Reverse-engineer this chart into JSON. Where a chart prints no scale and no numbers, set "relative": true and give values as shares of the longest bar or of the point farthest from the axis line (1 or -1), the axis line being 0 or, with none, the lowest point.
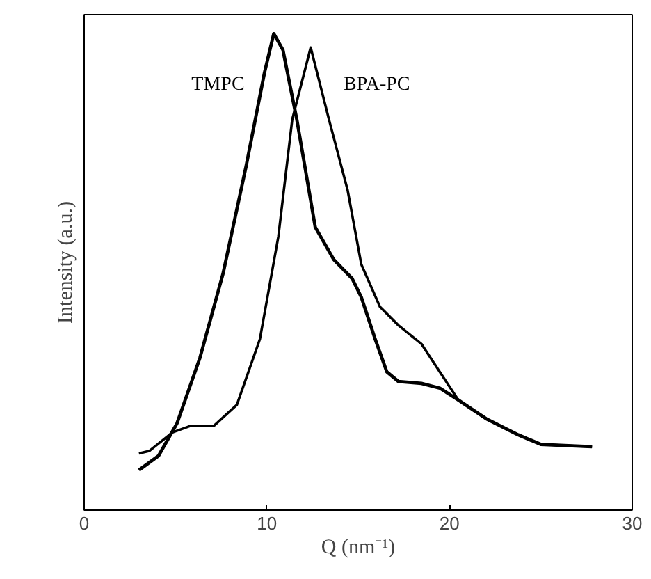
{
  "chart_data": {
    "type": "line",
    "relative": true,
    "xlabel": "Q (nm⁻¹)",
    "ylabel": "Intensity (a.u.)",
    "xlim": [
      0,
      30
    ],
    "xticks": [
      0,
      10,
      20,
      30
    ],
    "grid": false,
    "series": [
      {
        "name": "TMPC",
        "color": "#000000",
        "x": [
          3.0,
          4.07,
          5.08,
          6.34,
          7.6,
          8.86,
          9.87,
          10.38,
          10.88,
          11.64,
          12.65,
          13.66,
          14.67,
          15.17,
          15.93,
          16.57,
          17.2,
          18.46,
          19.47,
          20.48,
          22.0,
          23.76,
          25.0,
          27.8
        ],
        "values": [
          0.084,
          0.114,
          0.182,
          0.32,
          0.496,
          0.721,
          0.918,
          1.0,
          0.966,
          0.82,
          0.594,
          0.526,
          0.486,
          0.447,
          0.359,
          0.29,
          0.27,
          0.266,
          0.256,
          0.231,
          0.192,
          0.158,
          0.138,
          0.133
        ]
      },
      {
        "name": "BPA-PC",
        "color": "#000000",
        "x": [
          3.0,
          3.56,
          4.83,
          5.83,
          7.1,
          8.36,
          9.62,
          10.63,
          11.39,
          12.4,
          13.4,
          14.42,
          15.17,
          16.19,
          17.2,
          18.46,
          19.47,
          20.48,
          22.0,
          23.76,
          25.0,
          27.8
        ],
        "values": [
          0.119,
          0.124,
          0.163,
          0.177,
          0.177,
          0.221,
          0.359,
          0.574,
          0.82,
          0.971,
          0.82,
          0.672,
          0.516,
          0.427,
          0.388,
          0.349,
          0.29,
          0.231,
          0.192,
          0.158,
          0.138,
          0.133
        ]
      }
    ]
  }
}
